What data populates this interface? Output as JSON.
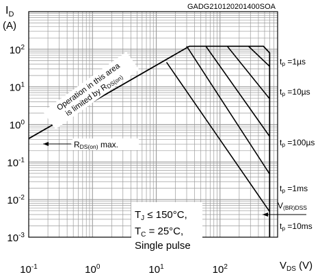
{
  "chart_data": {
    "type": "line",
    "title": "GADG210120201400SOA",
    "x_axis": {
      "scale": "log",
      "range": [
        0.1,
        800
      ],
      "ticks": [
        {
          "value": 0.1,
          "base": "10",
          "exp": "-1"
        },
        {
          "value": 1,
          "base": "10",
          "exp": "0"
        },
        {
          "value": 10,
          "base": "10",
          "exp": "1"
        },
        {
          "value": 100,
          "base": "10",
          "exp": "2"
        }
      ],
      "label": {
        "main": "V",
        "sub": "DS",
        "unit": " (V)"
      }
    },
    "y_axis": {
      "scale": "log",
      "range": [
        0.001,
        1000
      ],
      "ticks": [
        {
          "value": 100,
          "base": "10",
          "exp": "2"
        },
        {
          "value": 10,
          "base": "10",
          "exp": "1"
        },
        {
          "value": 1,
          "base": "10",
          "exp": "0"
        },
        {
          "value": 0.1,
          "base": "10",
          "exp": "-1"
        },
        {
          "value": 0.01,
          "base": "10",
          "exp": "-2"
        },
        {
          "value": 0.001,
          "base": "10",
          "exp": "-3"
        }
      ],
      "label": {
        "main": "I",
        "sub": "D",
        "unit": "(A)"
      }
    },
    "grid": true,
    "series": [
      {
        "points": [
          [
            0.1,
            0.42
          ],
          [
            33,
            120
          ],
          [
            130,
            120
          ],
          [
            280,
            120
          ],
          [
            480,
            120
          ],
          [
            600,
            80
          ],
          [
            600,
            0.001
          ]
        ]
      },
      {
        "points": [
          [
            280,
            120
          ],
          [
            600,
            35
          ]
        ]
      },
      {
        "points": [
          [
            130,
            120
          ],
          [
            600,
            4.8
          ]
        ]
      },
      {
        "points": [
          [
            60,
            120
          ],
          [
            600,
            0.48
          ]
        ]
      },
      {
        "points": [
          [
            30,
            120
          ],
          [
            600,
            0.048
          ]
        ]
      },
      {
        "points": [
          [
            14.5,
            45
          ],
          [
            600,
            0.0048
          ]
        ]
      }
    ],
    "annotations": {
      "rds_limit": {
        "line1": "Operation in this area",
        "line2": "is limited by R",
        "line2_sub": "DS(on)"
      },
      "rds_max": {
        "main": "R",
        "sub": "DS(on)",
        "tail": " max."
      },
      "vbr": {
        "main": "V",
        "sub": "(BR)DSS"
      },
      "conditions": [
        {
          "main": "T",
          "sub": "J",
          "tail": " ≤ 150°C,"
        },
        {
          "main": "T",
          "sub": "C",
          "tail": " = 25°C,"
        },
        {
          "main": "Single pulse",
          "sub": "",
          "tail": ""
        }
      ],
      "pulse_labels": [
        {
          "main": "t",
          "sub": "p",
          "tail": " =1µs"
        },
        {
          "main": "t",
          "sub": "p",
          "tail": " =10µs"
        },
        {
          "main": "t",
          "sub": "p",
          "tail": " =100µs"
        },
        {
          "main": "t",
          "sub": "p",
          "tail": " =1ms"
        },
        {
          "main": "t",
          "sub": "p",
          "tail": " =10ms"
        }
      ]
    }
  }
}
